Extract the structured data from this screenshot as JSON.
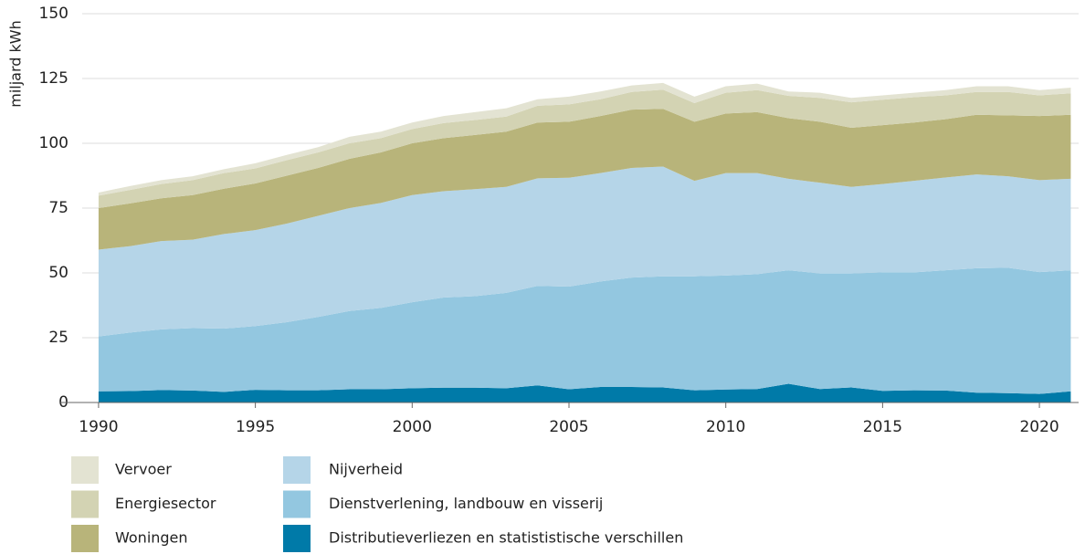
{
  "chart_data": {
    "type": "stacked_area",
    "ylabel": "miljard kWh",
    "x": [
      1990,
      1991,
      1992,
      1993,
      1994,
      1995,
      1996,
      1997,
      1998,
      1999,
      2000,
      2001,
      2002,
      2003,
      2004,
      2005,
      2006,
      2007,
      2008,
      2009,
      2010,
      2011,
      2012,
      2013,
      2014,
      2015,
      2016,
      2017,
      2018,
      2019,
      2020,
      2021
    ],
    "xlim": [
      1988.75,
      2021.25
    ],
    "xticks": [
      1990,
      1995,
      2000,
      2005,
      2010,
      2015,
      2020
    ],
    "ylim": [
      0,
      150
    ],
    "yticks": [
      0,
      25,
      50,
      75,
      100,
      125,
      150
    ],
    "grid": true,
    "series": [
      {
        "name": "Vervoer",
        "color": "#e3e3d2",
        "values": [
          1.2,
          1.5,
          1.5,
          1.5,
          1.5,
          2,
          2,
          2,
          2.5,
          2.5,
          2.5,
          2.7,
          3,
          3.2,
          2.5,
          3,
          3,
          2.5,
          2.6,
          2.5,
          2.5,
          2.5,
          1.7,
          2,
          1.7,
          1.7,
          1.7,
          2,
          2.2,
          2.2,
          2,
          2.2
        ]
      },
      {
        "name": "Energiesector",
        "color": "#d3d3b3",
        "values": [
          4.8,
          5.2,
          5.5,
          5.8,
          6,
          5.8,
          6,
          6,
          6,
          5.5,
          5.5,
          5.8,
          5.8,
          5.8,
          6.5,
          6.7,
          6.5,
          6.8,
          7.4,
          7.2,
          8,
          8.5,
          8.6,
          9.2,
          9.8,
          9.8,
          9.8,
          9.2,
          8.8,
          9,
          8,
          8.3
        ]
      },
      {
        "name": "Woningen",
        "color": "#b8b47a",
        "values": [
          16,
          16.5,
          16.5,
          17.2,
          17.5,
          18,
          18.5,
          18.5,
          19,
          19.5,
          20,
          20.5,
          20.9,
          21.3,
          21.5,
          21.6,
          22,
          22.5,
          22.3,
          22.8,
          23,
          23.5,
          23.4,
          23.5,
          22.8,
          22.7,
          22.5,
          22.5,
          23,
          23.5,
          24.7,
          24.7
        ]
      },
      {
        "name": "Nijverheid",
        "color": "#b5d5e8",
        "values": [
          33.5,
          33.3,
          34.1,
          34.1,
          36.5,
          37,
          38,
          39,
          39.7,
          40.5,
          41.3,
          41,
          41.3,
          40.9,
          41.5,
          42,
          41.8,
          42.3,
          42.3,
          36.8,
          39.5,
          39,
          35.3,
          35,
          33.4,
          34.1,
          35.3,
          35.8,
          36.2,
          35.3,
          35.5,
          35.3
        ]
      },
      {
        "name": "Dienstverlening, landbouw en visserij",
        "color": "#93c7e0",
        "values": [
          21.2,
          22.6,
          23.4,
          24.1,
          24.4,
          24.6,
          26.3,
          28.3,
          30.2,
          31.4,
          33.2,
          34.8,
          35.3,
          36.8,
          38.4,
          39.6,
          40.7,
          42.2,
          42.9,
          44,
          44,
          44.3,
          43.8,
          44.6,
          44,
          45.7,
          45.5,
          46.4,
          48,
          48.4,
          47,
          46.7
        ]
      },
      {
        "name": "Distributieverliezen en statististische verschillen",
        "color": "#007aa8",
        "values": [
          4.3,
          4.4,
          4.8,
          4.6,
          4.1,
          4.9,
          4.7,
          4.7,
          5.1,
          5.1,
          5.5,
          5.7,
          5.7,
          5.5,
          6.6,
          5.1,
          6,
          6,
          5.8,
          4.7,
          5,
          5.2,
          7.2,
          5.2,
          5.8,
          4.5,
          4.7,
          4.6,
          3.8,
          3.6,
          3.3,
          4.3
        ]
      }
    ]
  }
}
